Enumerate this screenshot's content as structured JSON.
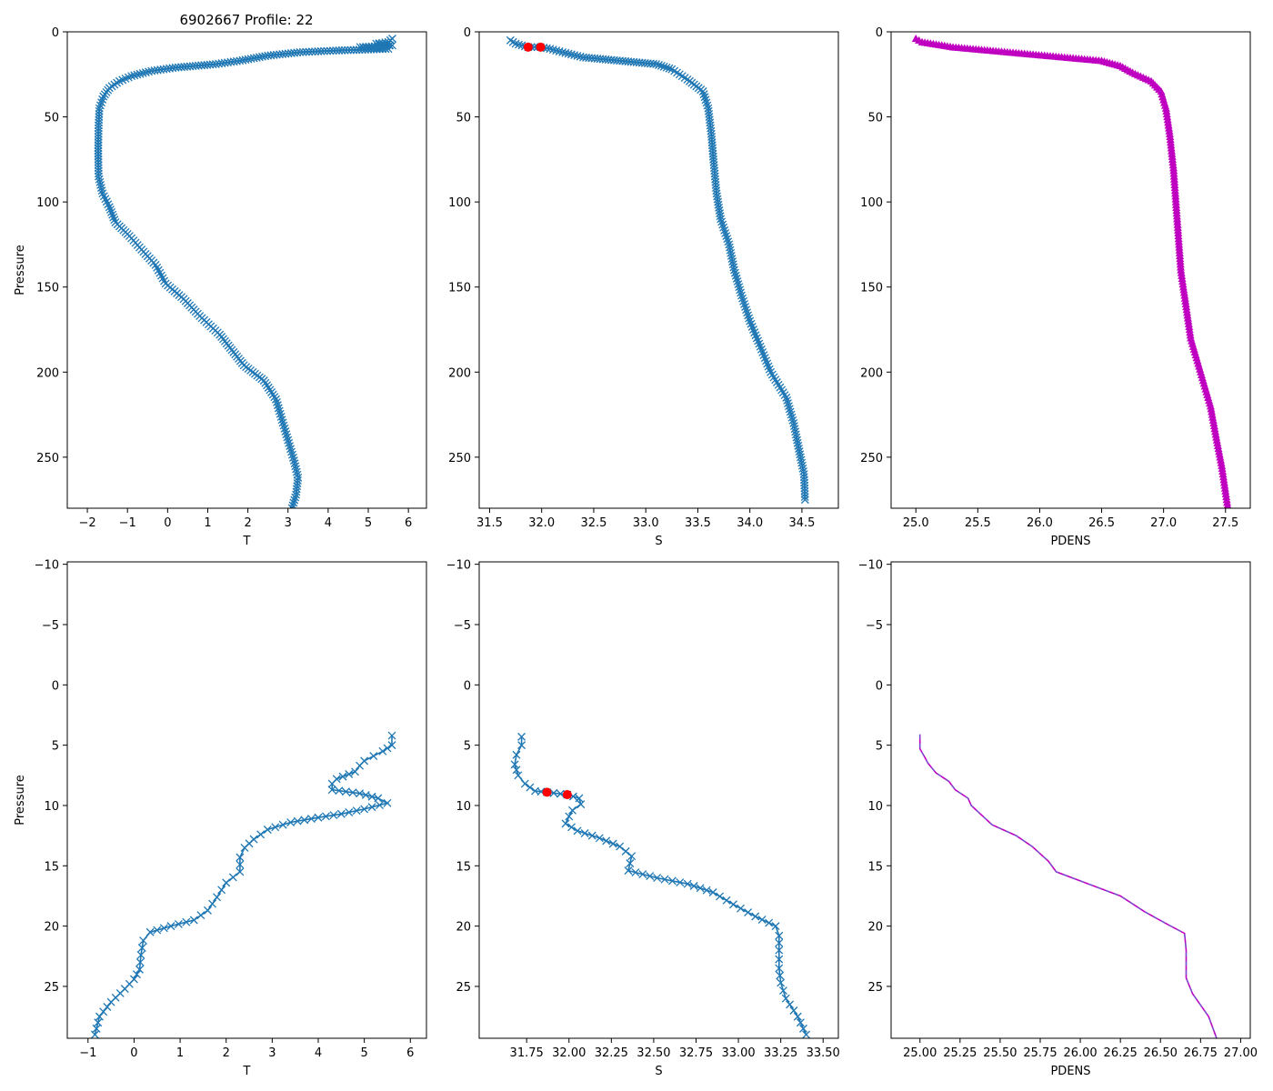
{
  "figure_title": "6902667 Profile: 22",
  "colors": {
    "series": "#1f77b4",
    "density": "#c000c0",
    "flag": "#ff0000",
    "axes": "#000000"
  },
  "chart_data": [
    {
      "id": "top-temperature",
      "type": "line",
      "marker": "x",
      "xlabel": "T",
      "ylabel": "Pressure",
      "xlim": [
        -2.5,
        6.45
      ],
      "ylim": [
        280,
        0
      ],
      "y_inverted": true,
      "xticks": [
        -2,
        -1,
        0,
        1,
        2,
        3,
        4,
        5,
        6
      ],
      "yticks": [
        0,
        50,
        100,
        150,
        200,
        250
      ],
      "points": [
        [
          5.6,
          4
        ],
        [
          5.5,
          6
        ],
        [
          5.2,
          7
        ],
        [
          5.6,
          8
        ],
        [
          4.8,
          9
        ],
        [
          5.5,
          10
        ],
        [
          4.2,
          11
        ],
        [
          3.3,
          12
        ],
        [
          2.5,
          14
        ],
        [
          1.8,
          17
        ],
        [
          1.2,
          19
        ],
        [
          0.2,
          21
        ],
        [
          -0.4,
          23
        ],
        [
          -0.9,
          26
        ],
        [
          -1.2,
          29
        ],
        [
          -1.45,
          33
        ],
        [
          -1.6,
          38
        ],
        [
          -1.7,
          45
        ],
        [
          -1.72,
          55
        ],
        [
          -1.73,
          70
        ],
        [
          -1.72,
          85
        ],
        [
          -1.62,
          95
        ],
        [
          -1.45,
          103
        ],
        [
          -1.3,
          112
        ],
        [
          -0.95,
          120
        ],
        [
          -0.65,
          128
        ],
        [
          -0.3,
          137
        ],
        [
          -0.05,
          148
        ],
        [
          0.4,
          157
        ],
        [
          0.8,
          167
        ],
        [
          1.3,
          178
        ],
        [
          1.6,
          187
        ],
        [
          1.9,
          196
        ],
        [
          2.4,
          205
        ],
        [
          2.7,
          216
        ],
        [
          2.85,
          228
        ],
        [
          3.0,
          240
        ],
        [
          3.15,
          252
        ],
        [
          3.25,
          262
        ],
        [
          3.2,
          272
        ],
        [
          3.1,
          280
        ]
      ]
    },
    {
      "id": "top-salinity",
      "type": "line",
      "marker": "x",
      "xlabel": "S",
      "ylabel": "",
      "xlim": [
        31.4,
        34.85
      ],
      "ylim": [
        280,
        0
      ],
      "y_inverted": true,
      "xticks": [
        31.5,
        32.0,
        32.5,
        33.0,
        33.5,
        34.0,
        34.5
      ],
      "yticks": [
        0,
        50,
        100,
        150,
        200,
        250
      ],
      "flagged": [
        [
          31.87,
          9
        ],
        [
          31.99,
          9
        ]
      ],
      "points": [
        [
          31.7,
          5
        ],
        [
          31.75,
          7
        ],
        [
          31.87,
          9
        ],
        [
          31.99,
          9
        ],
        [
          32.08,
          10
        ],
        [
          32.2,
          12
        ],
        [
          32.4,
          15
        ],
        [
          32.75,
          17
        ],
        [
          33.1,
          19
        ],
        [
          33.25,
          22
        ],
        [
          33.4,
          28
        ],
        [
          33.55,
          35
        ],
        [
          33.6,
          45
        ],
        [
          33.63,
          60
        ],
        [
          33.65,
          75
        ],
        [
          33.68,
          95
        ],
        [
          33.72,
          110
        ],
        [
          33.8,
          125
        ],
        [
          33.85,
          140
        ],
        [
          33.92,
          155
        ],
        [
          34.0,
          170
        ],
        [
          34.1,
          185
        ],
        [
          34.2,
          200
        ],
        [
          34.35,
          215
        ],
        [
          34.42,
          230
        ],
        [
          34.47,
          245
        ],
        [
          34.52,
          260
        ],
        [
          34.53,
          275
        ]
      ]
    },
    {
      "id": "top-density",
      "type": "line",
      "marker": "triangle",
      "xlabel": "PDENS",
      "ylabel": "",
      "xlim": [
        24.8,
        27.7
      ],
      "ylim": [
        280,
        0
      ],
      "y_inverted": true,
      "xticks": [
        25.0,
        25.5,
        26.0,
        26.5,
        27.0,
        27.5
      ],
      "yticks": [
        0,
        50,
        100,
        150,
        200,
        250
      ],
      "points": [
        [
          25.0,
          4
        ],
        [
          25.05,
          6
        ],
        [
          25.3,
          9
        ],
        [
          25.6,
          11
        ],
        [
          25.9,
          13
        ],
        [
          26.2,
          15
        ],
        [
          26.5,
          17
        ],
        [
          26.65,
          20
        ],
        [
          26.75,
          24
        ],
        [
          26.9,
          29
        ],
        [
          26.98,
          35
        ],
        [
          27.02,
          45
        ],
        [
          27.05,
          60
        ],
        [
          27.08,
          80
        ],
        [
          27.1,
          100
        ],
        [
          27.12,
          120
        ],
        [
          27.14,
          140
        ],
        [
          27.18,
          160
        ],
        [
          27.22,
          180
        ],
        [
          27.3,
          200
        ],
        [
          27.38,
          220
        ],
        [
          27.43,
          240
        ],
        [
          27.47,
          255
        ],
        [
          27.5,
          270
        ],
        [
          27.52,
          280
        ]
      ]
    },
    {
      "id": "bottom-temperature",
      "type": "line",
      "marker": "x",
      "xlabel": "T",
      "ylabel": "Pressure",
      "xlim": [
        -1.45,
        6.35
      ],
      "ylim": [
        29.3,
        -10.2
      ],
      "y_inverted": true,
      "xticks": [
        -1,
        0,
        1,
        2,
        3,
        4,
        5,
        6
      ],
      "yticks": [
        -10,
        -5,
        0,
        5,
        10,
        15,
        20,
        25
      ],
      "points": [
        [
          5.6,
          4.2
        ],
        [
          5.6,
          5.0
        ],
        [
          5.4,
          5.5
        ],
        [
          5.2,
          5.9
        ],
        [
          5.0,
          6.3
        ],
        [
          4.9,
          6.7
        ],
        [
          4.8,
          7.2
        ],
        [
          4.4,
          7.8
        ],
        [
          4.3,
          8.2
        ],
        [
          4.3,
          8.7
        ],
        [
          4.9,
          9.0
        ],
        [
          5.3,
          9.4
        ],
        [
          5.5,
          9.8
        ],
        [
          5.0,
          10.3
        ],
        [
          4.5,
          10.7
        ],
        [
          4.0,
          11.0
        ],
        [
          3.4,
          11.4
        ],
        [
          2.9,
          12.0
        ],
        [
          2.6,
          12.8
        ],
        [
          2.4,
          13.5
        ],
        [
          2.3,
          14.3
        ],
        [
          2.3,
          15.5
        ],
        [
          2.0,
          16.4
        ],
        [
          1.8,
          17.6
        ],
        [
          1.6,
          18.7
        ],
        [
          1.3,
          19.5
        ],
        [
          0.8,
          20.0
        ],
        [
          0.35,
          20.5
        ],
        [
          0.2,
          21.2
        ],
        [
          0.15,
          22.4
        ],
        [
          0.12,
          23.6
        ],
        [
          0.0,
          24.4
        ],
        [
          -0.2,
          25.2
        ],
        [
          -0.5,
          26.3
        ],
        [
          -0.75,
          27.5
        ],
        [
          -0.85,
          29.0
        ]
      ]
    },
    {
      "id": "bottom-salinity",
      "type": "line",
      "marker": "x",
      "xlabel": "S",
      "ylabel": "",
      "xlim": [
        31.47,
        33.59
      ],
      "ylim": [
        29.3,
        -10.2
      ],
      "y_inverted": true,
      "xticks": [
        31.75,
        32.0,
        32.25,
        32.5,
        32.75,
        33.0,
        33.25,
        33.5
      ],
      "yticks": [
        -10,
        -5,
        0,
        5,
        10,
        15,
        20,
        25
      ],
      "flagged": [
        [
          31.87,
          8.9
        ],
        [
          31.99,
          9.1
        ]
      ],
      "points": [
        [
          31.72,
          4.3
        ],
        [
          31.72,
          5.0
        ],
        [
          31.69,
          5.8
        ],
        [
          31.68,
          6.6
        ],
        [
          31.7,
          7.5
        ],
        [
          31.74,
          8.2
        ],
        [
          31.8,
          8.8
        ],
        [
          31.87,
          8.9
        ],
        [
          31.99,
          9.1
        ],
        [
          32.06,
          9.4
        ],
        [
          32.07,
          9.9
        ],
        [
          32.02,
          10.4
        ],
        [
          32.0,
          10.9
        ],
        [
          31.98,
          11.5
        ],
        [
          32.05,
          12.1
        ],
        [
          32.18,
          12.7
        ],
        [
          32.3,
          13.4
        ],
        [
          32.37,
          14.2
        ],
        [
          32.35,
          15.4
        ],
        [
          32.52,
          16.0
        ],
        [
          32.7,
          16.5
        ],
        [
          32.85,
          17.2
        ],
        [
          32.97,
          18.2
        ],
        [
          33.1,
          19.2
        ],
        [
          33.22,
          20.0
        ],
        [
          33.24,
          20.8
        ],
        [
          33.24,
          22.0
        ],
        [
          33.24,
          23.5
        ],
        [
          33.25,
          24.7
        ],
        [
          33.28,
          26.0
        ],
        [
          33.35,
          27.5
        ],
        [
          33.4,
          29.0
        ]
      ]
    },
    {
      "id": "bottom-density",
      "type": "line",
      "marker": "none",
      "xlabel": "PDENS",
      "ylabel": "",
      "xlim": [
        24.82,
        27.06
      ],
      "ylim": [
        29.3,
        -10.2
      ],
      "y_inverted": true,
      "xticks": [
        25.0,
        25.25,
        25.5,
        25.75,
        26.0,
        26.25,
        26.5,
        26.75,
        27.0
      ],
      "yticks": [
        -10,
        -5,
        0,
        5,
        10,
        15,
        20,
        25
      ],
      "points": [
        [
          25.0,
          4.1
        ],
        [
          25.0,
          5.3
        ],
        [
          25.03,
          6.0
        ],
        [
          25.05,
          6.5
        ],
        [
          25.1,
          7.3
        ],
        [
          25.18,
          8.0
        ],
        [
          25.22,
          8.7
        ],
        [
          25.3,
          9.4
        ],
        [
          25.32,
          10.0
        ],
        [
          25.45,
          11.6
        ],
        [
          25.6,
          12.5
        ],
        [
          25.7,
          13.4
        ],
        [
          25.8,
          14.6
        ],
        [
          25.85,
          15.5
        ],
        [
          26.05,
          16.5
        ],
        [
          26.25,
          17.5
        ],
        [
          26.4,
          18.8
        ],
        [
          26.55,
          19.9
        ],
        [
          26.65,
          20.6
        ],
        [
          26.66,
          22.0
        ],
        [
          26.66,
          24.3
        ],
        [
          26.7,
          25.6
        ],
        [
          26.8,
          27.5
        ],
        [
          26.85,
          29.3
        ]
      ]
    }
  ]
}
